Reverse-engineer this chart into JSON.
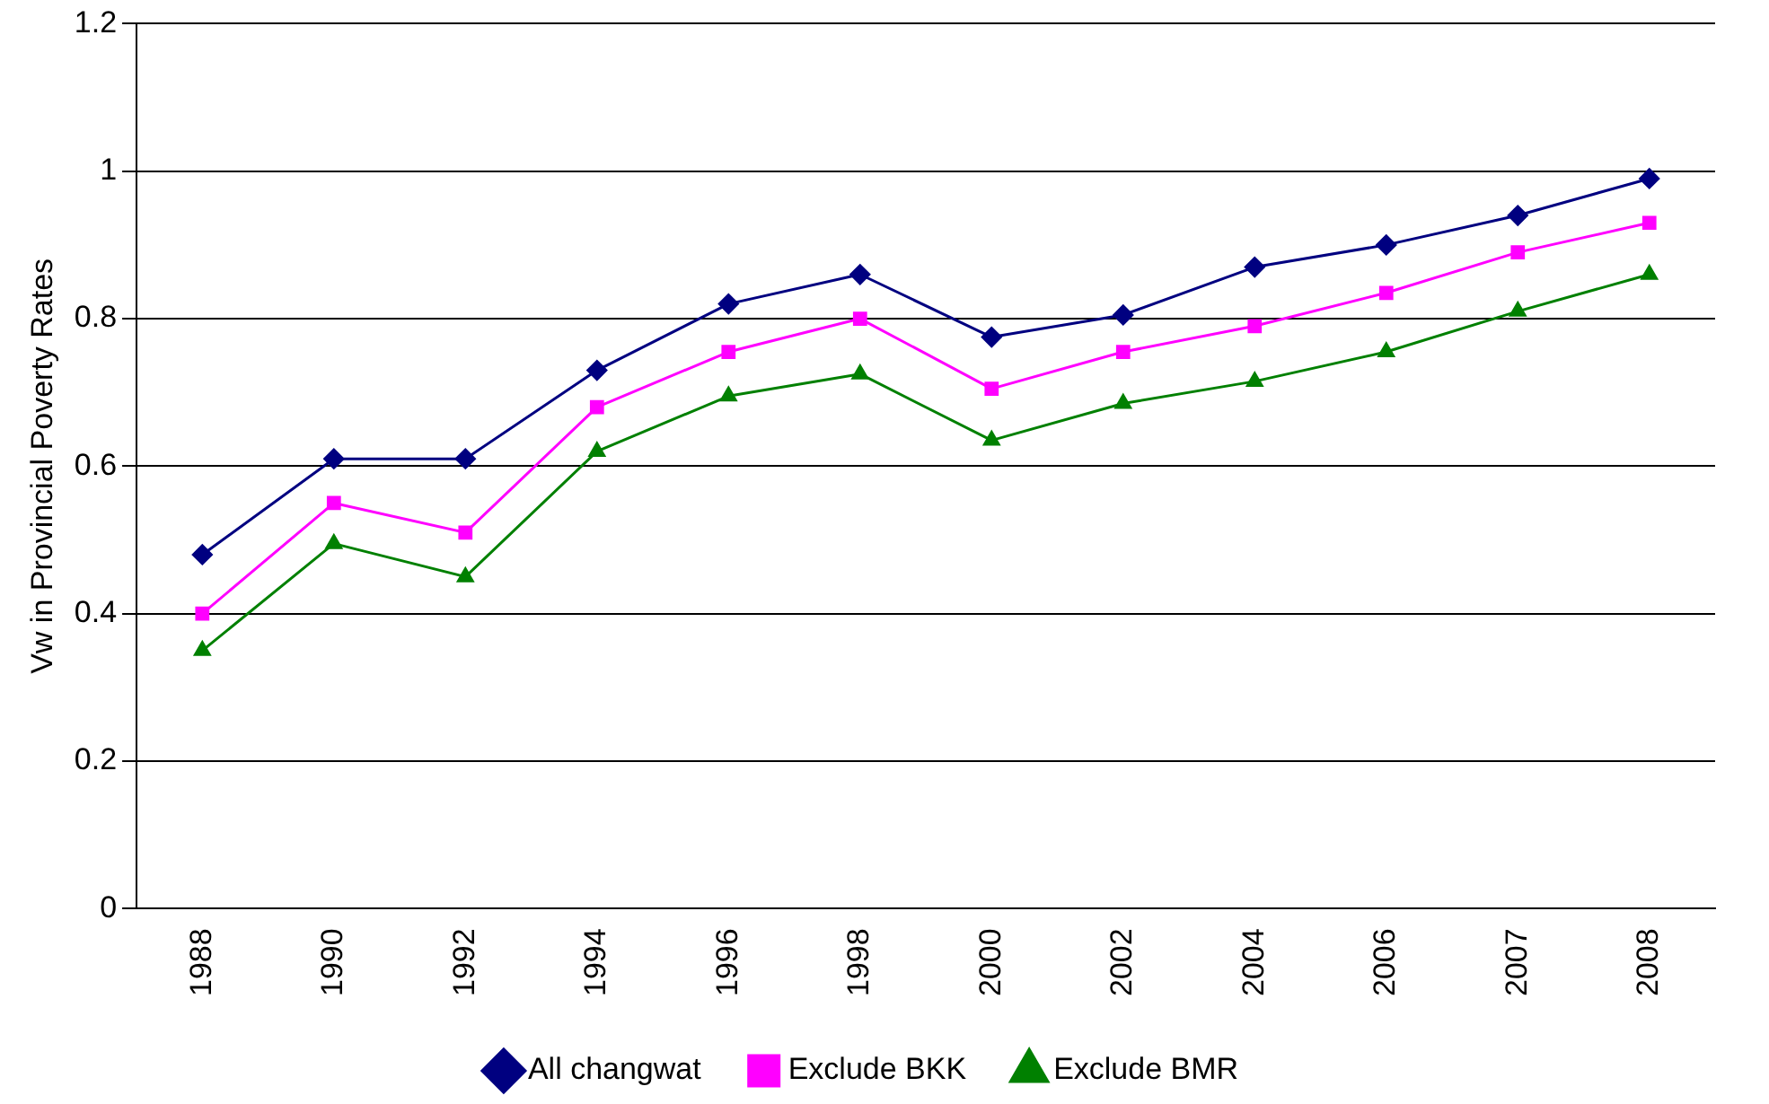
{
  "chart_data": {
    "type": "line",
    "ylabel": "Vw in Provincial Poverty Rates",
    "categories": [
      "1988",
      "1990",
      "1992",
      "1994",
      "1996",
      "1998",
      "2000",
      "2002",
      "2004",
      "2006",
      "2007",
      "2008"
    ],
    "series": [
      {
        "name": "All changwat",
        "color": "#000080",
        "marker": "diamond",
        "values": [
          0.48,
          0.61,
          0.61,
          0.73,
          0.82,
          0.86,
          0.775,
          0.805,
          0.87,
          0.9,
          0.94,
          0.99
        ]
      },
      {
        "name": "Exclude BKK",
        "color": "#ff00ff",
        "marker": "square",
        "values": [
          0.4,
          0.55,
          0.51,
          0.68,
          0.755,
          0.8,
          0.705,
          0.755,
          0.79,
          0.835,
          0.89,
          0.93
        ]
      },
      {
        "name": "Exclude BMR",
        "color": "#008000",
        "marker": "triangle",
        "values": [
          0.35,
          0.495,
          0.45,
          0.62,
          0.695,
          0.725,
          0.635,
          0.685,
          0.715,
          0.755,
          0.81,
          0.86
        ]
      }
    ],
    "ylim": [
      0,
      1.2
    ],
    "yticks": [
      0,
      0.2,
      0.4,
      0.6,
      0.8,
      1,
      1.2
    ],
    "grid": "y",
    "legend": "bottom",
    "line_style": "solid"
  }
}
